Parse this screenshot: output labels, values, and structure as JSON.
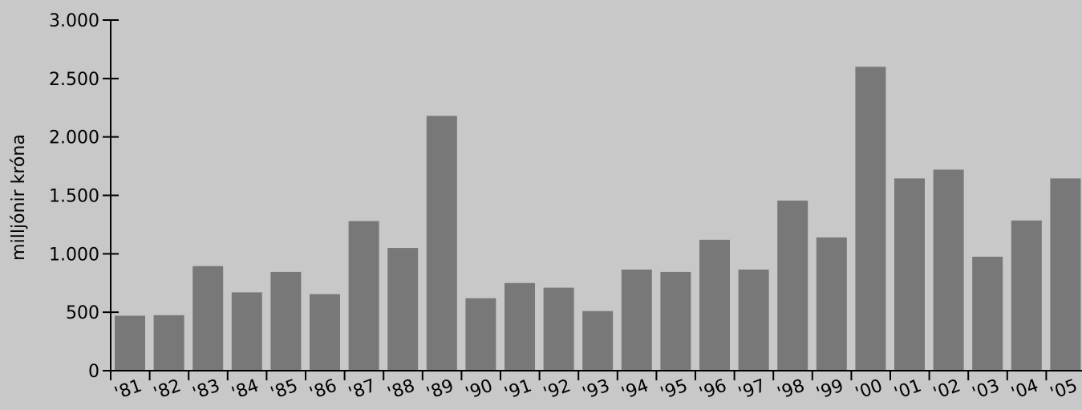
{
  "colors": {
    "background": "#c8c8c8",
    "bar": "#787878",
    "axis": "#000000"
  },
  "chart_data": {
    "type": "bar",
    "title": "",
    "xlabel": "",
    "ylabel": "milljónir króna",
    "ylim": [
      0,
      3000
    ],
    "yticks": [
      {
        "value": 0,
        "label": "0"
      },
      {
        "value": 500,
        "label": "500"
      },
      {
        "value": 1000,
        "label": "1.000"
      },
      {
        "value": 1500,
        "label": "1.500"
      },
      {
        "value": 2000,
        "label": "2.000"
      },
      {
        "value": 2500,
        "label": "2.500"
      },
      {
        "value": 3000,
        "label": "3.000"
      }
    ],
    "categories": [
      "'81",
      "'82",
      "'83",
      "'84",
      "'85",
      "'86",
      "'87",
      "'88",
      "'89",
      "'90",
      "'91",
      "'92",
      "'93",
      "'94",
      "'95",
      "'96",
      "'97",
      "'98",
      "'99",
      "'00",
      "'01",
      "'02",
      "'03",
      "'04",
      "'05"
    ],
    "values": [
      470,
      475,
      895,
      670,
      845,
      655,
      1280,
      1050,
      2180,
      620,
      750,
      710,
      510,
      865,
      845,
      1120,
      865,
      1455,
      1140,
      2600,
      1645,
      1720,
      975,
      1285,
      1645
    ],
    "grid": false,
    "legend": "none"
  }
}
